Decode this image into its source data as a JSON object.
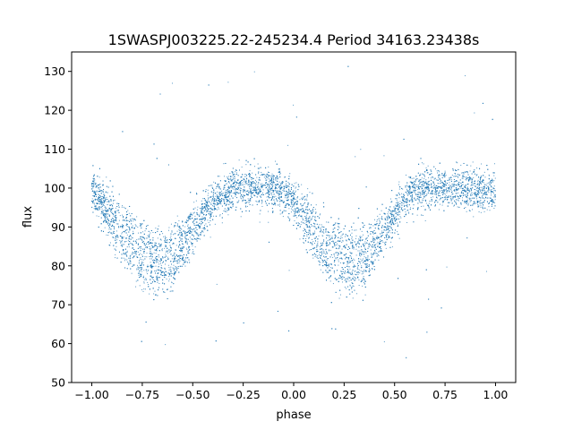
{
  "chart_data": {
    "type": "scatter",
    "title": "1SWASPJ003225.22-245234.4 Period 34163.23438s",
    "xlabel": "phase",
    "ylabel": "flux",
    "xlim": [
      -1.1,
      1.1
    ],
    "ylim": [
      50,
      135
    ],
    "xticks": [
      -1.0,
      -0.75,
      -0.5,
      -0.25,
      0.0,
      0.25,
      0.5,
      0.75,
      1.0
    ],
    "xtick_labels": [
      "−1.00",
      "−0.75",
      "−0.50",
      "−0.25",
      "0.00",
      "0.25",
      "0.50",
      "0.75",
      "1.00"
    ],
    "yticks": [
      50,
      60,
      70,
      80,
      90,
      100,
      110,
      120,
      130
    ],
    "ytick_labels": [
      "50",
      "60",
      "70",
      "80",
      "90",
      "100",
      "110",
      "120",
      "130"
    ],
    "grid": false,
    "marker_color": "#1f77b4",
    "series": [
      {
        "phase": [
          -1.0,
          -0.95,
          -0.9,
          -0.85,
          -0.8,
          -0.75,
          -0.7,
          -0.65,
          -0.6,
          -0.55,
          -0.5,
          -0.45,
          -0.4,
          -0.35,
          -0.3,
          -0.25,
          -0.2,
          -0.15,
          -0.1,
          -0.05,
          0.0,
          0.05,
          0.1,
          0.15,
          0.2,
          0.25,
          0.3,
          0.35,
          0.4,
          0.45,
          0.5,
          0.55,
          0.6,
          0.65,
          0.7,
          0.75,
          0.8,
          0.85,
          0.9,
          0.95,
          1.0
        ],
        "upper_branch_flux": [
          99,
          97,
          95,
          92,
          89,
          87,
          85,
          85,
          86,
          88,
          91,
          94,
          97,
          99,
          100,
          100,
          100,
          100,
          100,
          99,
          97,
          95,
          92,
          89,
          87,
          85,
          85,
          86,
          88,
          91,
          94,
          97,
          99,
          100,
          100,
          100,
          100,
          100,
          100,
          99,
          99
        ],
        "lower_branch_flux": [
          99,
          95,
          90,
          86,
          82,
          79,
          78,
          78,
          79,
          83,
          87,
          92,
          96,
          98,
          100,
          100,
          100,
          100,
          100,
          99,
          95,
          90,
          86,
          82,
          79,
          78,
          78,
          79,
          83,
          87,
          92,
          96,
          98,
          100,
          100,
          100,
          100,
          100,
          100,
          99,
          99
        ]
      }
    ]
  }
}
